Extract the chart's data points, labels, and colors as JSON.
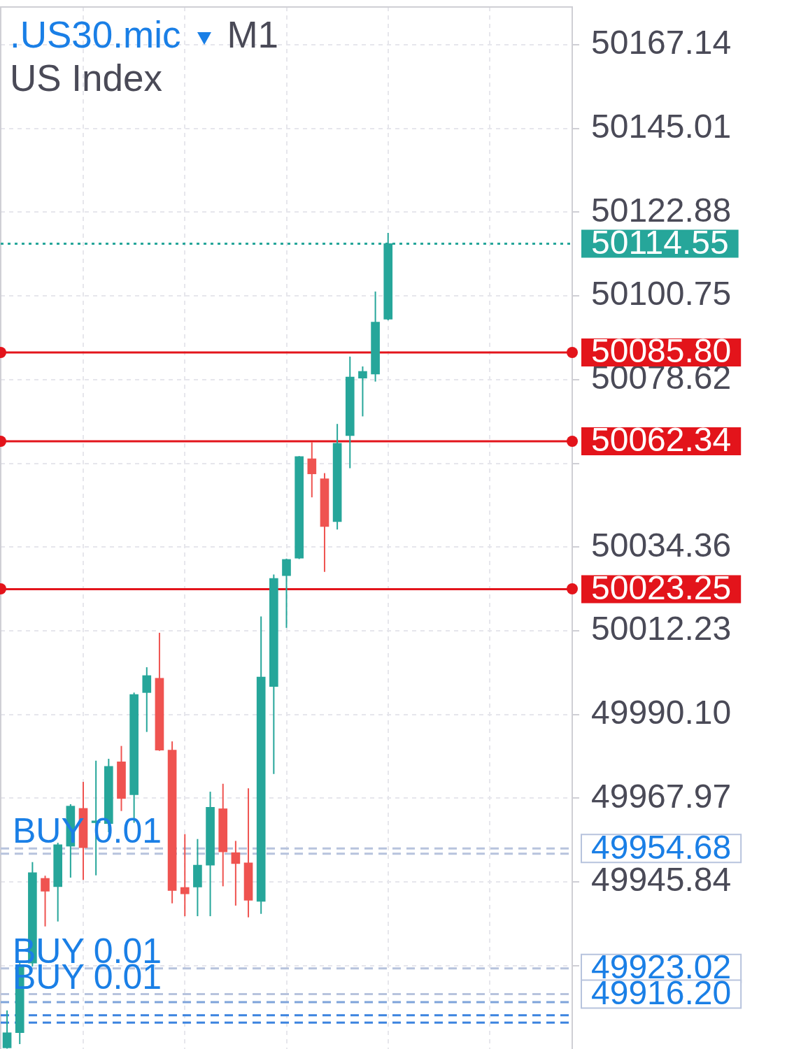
{
  "chart_data": {
    "type": "candlestick",
    "title": ".US30.mic",
    "subtitle": "US Index",
    "categories": [
      null,
      null,
      null,
      null,
      null,
      null,
      null,
      null,
      null,
      null,
      null,
      null,
      null,
      null,
      null,
      null,
      null,
      null,
      null,
      null,
      null,
      null,
      null,
      null,
      null,
      null,
      null,
      null,
      null,
      null,
      null,
      null,
      null,
      null,
      null,
      null,
      null,
      null,
      null,
      null,
      null,
      null,
      null,
      null,
      null
    ],
    "ohlc": [
      [
        49902.0,
        49911.9,
        49901.8,
        49906.0
      ],
      [
        49906.0,
        49924.4,
        49903.0,
        49923.9
      ],
      [
        49924.4,
        49951.1,
        49923.5,
        49948.3
      ],
      [
        49946.8,
        49947.5,
        49934.1,
        49943.4
      ],
      [
        49944.6,
        49956.2,
        49935.4,
        49955.7
      ],
      [
        49955.3,
        49966.4,
        49947.0,
        49965.9
      ],
      [
        49965.3,
        49972.3,
        49946.4,
        49954.9
      ],
      [
        49961.5,
        49977.9,
        49947.6,
        49962.0
      ],
      [
        49961.3,
        49978.4,
        49959.0,
        49976.4
      ],
      [
        49977.6,
        49981.8,
        49964.6,
        49967.9
      ],
      [
        49968.9,
        49995.9,
        49961.5,
        49995.4
      ],
      [
        49995.9,
        50002.6,
        49985.5,
        50000.4
      ],
      [
        49999.7,
        50011.7,
        49980.5,
        49980.7
      ],
      [
        49980.7,
        49983.0,
        49940.2,
        49943.6
      ],
      [
        49944.4,
        49958.5,
        49936.8,
        49942.7
      ],
      [
        49944.5,
        49957.2,
        49936.8,
        49950.3
      ],
      [
        49950.3,
        49969.7,
        49936.8,
        49965.6
      ],
      [
        49965.2,
        49971.8,
        49944.7,
        49953.8
      ],
      [
        49953.6,
        49956.7,
        49939.6,
        49950.7
      ],
      [
        49950.9,
        49970.6,
        49936.5,
        49941.0
      ],
      [
        49940.7,
        50016.0,
        49937.4,
        50000.0
      ],
      [
        49997.5,
        50027.1,
        49974.4,
        50026.1
      ],
      [
        50026.8,
        50031.3,
        50013.0,
        50031.1
      ],
      [
        50031.4,
        50058.4,
        50031.2,
        50058.3
      ],
      [
        50057.7,
        50062.1,
        50047.5,
        50053.7
      ],
      [
        50052.4,
        50053.9,
        50027.8,
        50039.8
      ],
      [
        50041.1,
        50066.9,
        50039.0,
        50061.8
      ],
      [
        50063.8,
        50084.7,
        50055.2,
        50079.3
      ],
      [
        50079.0,
        50082.1,
        50068.9,
        50080.8
      ],
      [
        50080.1,
        50101.9,
        50078.1,
        50093.8
      ],
      [
        50094.6,
        50117.4,
        50094.3,
        50114.55
      ],
      null,
      null,
      null,
      null,
      null,
      null,
      null,
      null,
      null,
      null,
      null,
      null,
      null,
      null
    ],
    "colors": [
      "#26a69a",
      "#26a69a",
      "#26a69a",
      "#ef5350",
      "#26a69a",
      "#26a69a",
      "#ef5350",
      "#26a69a",
      "#26a69a",
      "#ef5350",
      "#26a69a",
      "#26a69a",
      "#ef5350",
      "#ef5350",
      "#ef5350",
      "#26a69a",
      "#26a69a",
      "#ef5350",
      "#ef5350",
      "#ef5350",
      "#26a69a",
      "#26a69a",
      "#26a69a",
      "#26a69a",
      "#ef5350",
      "#ef5350",
      "#26a69a",
      "#26a69a",
      "#26a69a",
      "#26a69a",
      "#26a69a",
      null,
      null,
      null,
      null,
      null,
      null,
      null,
      null,
      null,
      null,
      null,
      null,
      null,
      null
    ],
    "ylim": [
      49901.7,
      50177.1
    ],
    "yticks": [
      {
        "value": 49923.71,
        "label": null
      },
      49945.84,
      49967.97,
      {
        "value": 49990.1,
        "label": "49990.10"
      },
      50012.23,
      50034.36,
      {
        "value": 50056.49,
        "label": null
      },
      50078.62,
      50100.75,
      50122.88,
      50145.01,
      50167.14
    ],
    "tick_labels": "y",
    "grid": true,
    "ref_lines": [
      {
        "axis": "y",
        "value": 50114.55,
        "label": "50114.55",
        "color": "#26a69a",
        "line_style": "dotted"
      },
      {
        "axis": "y",
        "value": 50085.8,
        "label": "50085.80",
        "color": "#e3141b",
        "line_style": "solid"
      },
      {
        "axis": "y",
        "value": 50062.34,
        "label": "50062.34",
        "color": "#e3141b",
        "line_style": "solid"
      },
      {
        "axis": "y",
        "value": 50023.25,
        "label": "50023.25",
        "color": "#e3141b",
        "line_style": "solid"
      },
      {
        "axis": "y",
        "value": 49954.68,
        "label": "49954.68",
        "color": "#b7c3dd",
        "line_style": "dashed"
      },
      {
        "axis": "y",
        "value": 49953.3,
        "color": "#b7c3dd",
        "line_style": "dashed"
      },
      {
        "axis": "y",
        "value": 49923.02,
        "label": "49923.02",
        "color": "#b7c3dd",
        "line_style": "dashed"
      },
      {
        "axis": "y",
        "value": 49916.2,
        "label": "49916.20",
        "color": "#b7c3dd",
        "line_style": "dashed"
      },
      {
        "axis": "y",
        "value": 49914.1,
        "color": "#7ea3da",
        "line_style": "dashed"
      },
      {
        "axis": "y",
        "value": 49910.6,
        "color": "#3c84e0",
        "line_style": "dashed"
      },
      {
        "axis": "y",
        "value": 49908.7,
        "color": "#3c84e0",
        "line_style": "dashed"
      }
    ],
    "annotations": [
      "M1",
      {
        "text": "BUY 0.01",
        "y": 49954.68
      },
      {
        "text": "BUY 0.01",
        "y": 49923.02
      },
      {
        "text": "BUY 0.01",
        "y": 49916.2
      }
    ]
  }
}
